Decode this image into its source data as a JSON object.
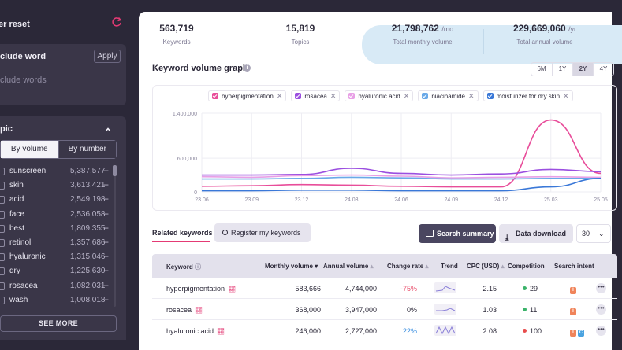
{
  "sidebar": {
    "filter_reset_label": "er reset",
    "include_word": {
      "title": "clude word",
      "apply_label": "Apply",
      "placeholder": "clude words"
    },
    "topic": {
      "title": "pic",
      "segments": [
        "By volume",
        "By number"
      ],
      "items": [
        {
          "name": "sunscreen",
          "count": "5,387,577"
        },
        {
          "name": "skin",
          "count": "3,613,421"
        },
        {
          "name": "acid",
          "count": "2,549,198"
        },
        {
          "name": "face",
          "count": "2,536,058"
        },
        {
          "name": "best",
          "count": "1,809,355"
        },
        {
          "name": "retinol",
          "count": "1,357,686"
        },
        {
          "name": "hyaluronic",
          "count": "1,315,046"
        },
        {
          "name": "dry",
          "count": "1,225,630"
        },
        {
          "name": "rosacea",
          "count": "1,082,031"
        },
        {
          "name": "wash",
          "count": "1,008,018"
        }
      ],
      "plus": "+",
      "see_more": "SEE MORE"
    }
  },
  "stats": {
    "keywords_value": "563,719",
    "keywords_label": "Keywords",
    "topics_value": "15,819",
    "topics_label": "Topics",
    "monthly_value": "21,798,762",
    "monthly_unit": "/mo",
    "monthly_label": "Total monthly volume",
    "annual_value": "229,669,060",
    "annual_unit": "/yr",
    "annual_label": "Total annual volume"
  },
  "graph": {
    "title": "Keyword volume graph",
    "info": "i",
    "ranges": [
      "6M",
      "1Y",
      "2Y",
      "4Y"
    ],
    "active_range": "2Y",
    "chips": [
      {
        "label": "hyperpigmentation",
        "color": "#e84d9a"
      },
      {
        "label": "rosacea",
        "color": "#9b4fe0"
      },
      {
        "label": "hyaluronic acid",
        "color": "#e8a0e6"
      },
      {
        "label": "niacinamide",
        "color": "#6aa9e8"
      },
      {
        "label": "moisturizer for dry skin",
        "color": "#3a78d8"
      }
    ],
    "chip_remove": "✕"
  },
  "chart_data": {
    "type": "line",
    "x": [
      "23.06",
      "23.09",
      "23.12",
      "24.03",
      "24.06",
      "24.09",
      "24.12",
      "25.03",
      "25.05"
    ],
    "yticks": [
      "0",
      "600,000",
      "1,400,000"
    ],
    "ylim": [
      0,
      1400000
    ],
    "series": [
      {
        "name": "hyperpigmentation",
        "color": "#e84d9a",
        "values": [
          100000,
          110000,
          130000,
          120000,
          100000,
          90000,
          90000,
          1280000,
          330000
        ]
      },
      {
        "name": "rosacea",
        "color": "#9b4fe0",
        "values": [
          300000,
          300000,
          310000,
          420000,
          330000,
          300000,
          320000,
          400000,
          360000
        ]
      },
      {
        "name": "hyaluronic acid",
        "color": "#e8a0e6",
        "values": [
          270000,
          260000,
          290000,
          300000,
          280000,
          250000,
          260000,
          270000,
          260000
        ]
      },
      {
        "name": "niacinamide",
        "color": "#6aa9e8",
        "values": [
          230000,
          230000,
          240000,
          260000,
          250000,
          230000,
          230000,
          240000,
          240000
        ]
      },
      {
        "name": "moisturizer for dry skin",
        "color": "#3a78d8",
        "values": [
          20000,
          20000,
          30000,
          30000,
          20000,
          20000,
          20000,
          90000,
          240000
        ]
      }
    ],
    "grid": true
  },
  "related": {
    "tab_label": "Related keywords",
    "register_label": "Register my keywords",
    "search_summary_label": "Search summary",
    "data_download_label": "Data download",
    "per_page": "30",
    "columns": [
      "Keyword",
      "Monthly volume",
      "Annual volume",
      "Change rate",
      "Trend",
      "CPC (USD)",
      "Competition",
      "Search intent"
    ],
    "rows": [
      {
        "keyword": "hyperpigmentation",
        "monthly": "583,666",
        "annual": "4,744,000",
        "change": "-75%",
        "change_color": "#e84d6a",
        "cpc": "2.15",
        "competition": "29",
        "comp_color": "#3bb36a",
        "intent": [
          "I"
        ]
      },
      {
        "keyword": "rosacea",
        "monthly": "368,000",
        "annual": "3,947,000",
        "change": "0%",
        "change_color": "#2b2838",
        "cpc": "1.03",
        "competition": "11",
        "comp_color": "#3bb36a",
        "intent": [
          "I"
        ]
      },
      {
        "keyword": "hyaluronic acid",
        "monthly": "246,000",
        "annual": "2,727,000",
        "change": "22%",
        "change_color": "#3a8ee0",
        "cpc": "2.08",
        "competition": "100",
        "comp_color": "#e84d4d",
        "intent": [
          "I",
          "C"
        ]
      }
    ],
    "more": "•••"
  }
}
